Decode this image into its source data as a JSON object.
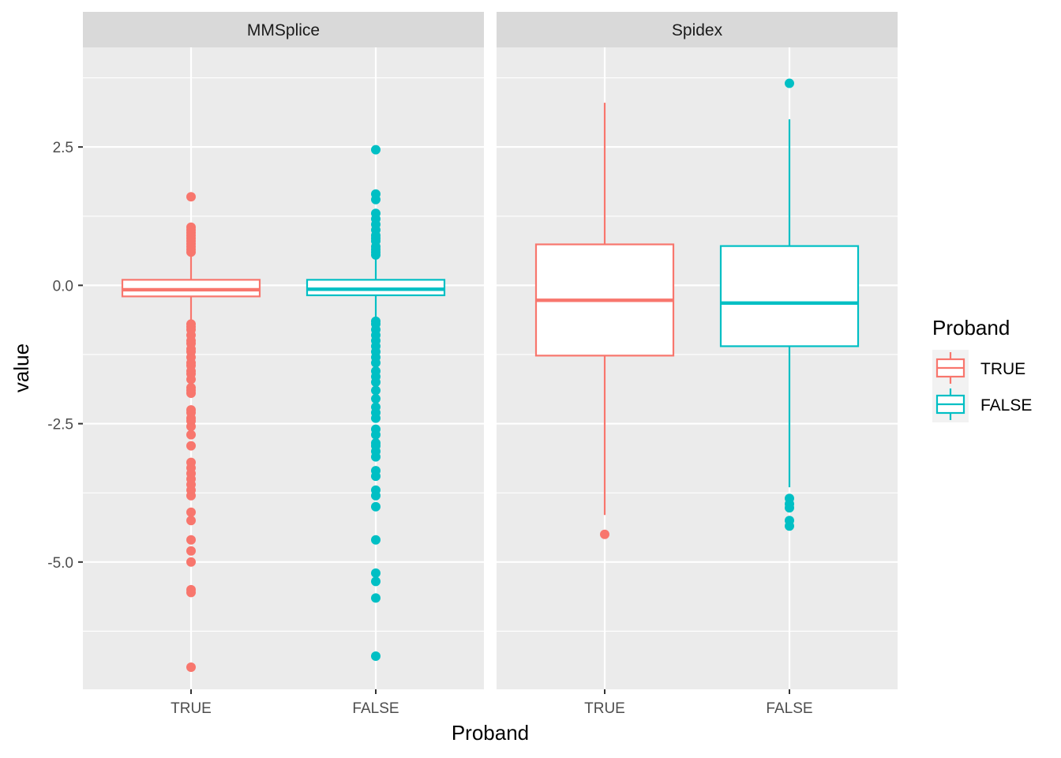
{
  "chart_data": {
    "type": "boxplot",
    "facets": [
      {
        "name": "MMSplice",
        "boxes": [
          {
            "category": "TRUE",
            "q1": -0.2,
            "median": -0.08,
            "q3": 0.1,
            "whisker_low": -0.62,
            "whisker_high": 0.55,
            "outliers": [
              1.6,
              1.05,
              1.0,
              0.95,
              0.9,
              0.85,
              0.8,
              0.75,
              0.7,
              0.65,
              0.6,
              -0.7,
              -0.75,
              -0.8,
              -0.9,
              -1.0,
              -1.05,
              -1.15,
              -1.2,
              -1.3,
              -1.4,
              -1.45,
              -1.55,
              -1.6,
              -1.7,
              -1.85,
              -1.9,
              -1.95,
              -2.25,
              -2.3,
              -2.4,
              -2.45,
              -2.55,
              -2.7,
              -2.9,
              -3.2,
              -3.3,
              -3.4,
              -3.5,
              -3.6,
              -3.7,
              -3.8,
              -4.1,
              -4.25,
              -4.6,
              -4.8,
              -5.0,
              -5.5,
              -5.55,
              -6.9
            ]
          },
          {
            "category": "FALSE",
            "q1": -0.18,
            "median": -0.07,
            "q3": 0.1,
            "whisker_low": -0.58,
            "whisker_high": 0.52,
            "outliers": [
              2.45,
              1.65,
              1.55,
              1.3,
              1.2,
              1.1,
              1.0,
              0.9,
              0.85,
              0.8,
              0.7,
              0.65,
              0.6,
              0.55,
              -0.65,
              -0.7,
              -0.8,
              -0.9,
              -1.0,
              -1.1,
              -1.2,
              -1.3,
              -1.4,
              -1.55,
              -1.65,
              -1.75,
              -1.9,
              -2.05,
              -2.2,
              -2.3,
              -2.4,
              -2.6,
              -2.7,
              -2.85,
              -2.9,
              -3.0,
              -3.1,
              -3.35,
              -3.45,
              -3.7,
              -3.8,
              -4.0,
              -4.6,
              -5.2,
              -5.35,
              -5.65,
              -6.7
            ]
          }
        ]
      },
      {
        "name": "Spidex",
        "boxes": [
          {
            "category": "TRUE",
            "q1": -1.27,
            "median": -0.27,
            "q3": 0.74,
            "whisker_low": -4.15,
            "whisker_high": 3.3,
            "outliers": [
              -4.5
            ]
          },
          {
            "category": "FALSE",
            "q1": -1.1,
            "median": -0.32,
            "q3": 0.71,
            "whisker_low": -3.65,
            "whisker_high": 3.0,
            "outliers": [
              3.65,
              -3.85,
              -3.95,
              -4.02,
              -4.25,
              -4.35
            ]
          }
        ]
      }
    ],
    "categories": [
      "TRUE",
      "FALSE"
    ],
    "xlabel": "Proband",
    "ylabel": "value",
    "ylim": [
      -7.3,
      4.3
    ],
    "yticks": [
      2.5,
      0.0,
      -2.5,
      -5.0
    ],
    "ytick_labels": [
      "2.5",
      "0.0",
      "-2.5",
      "-5.0"
    ],
    "grid": true,
    "legend": {
      "title": "Proband",
      "position": "right",
      "entries": [
        {
          "label": "TRUE",
          "color": "#F8766D"
        },
        {
          "label": "FALSE",
          "color": "#00BFC4"
        }
      ]
    },
    "colors": {
      "TRUE": "#F8766D",
      "FALSE": "#00BFC4"
    },
    "panel_background": "#EBEBEB",
    "strip_background": "#D9D9D9"
  }
}
